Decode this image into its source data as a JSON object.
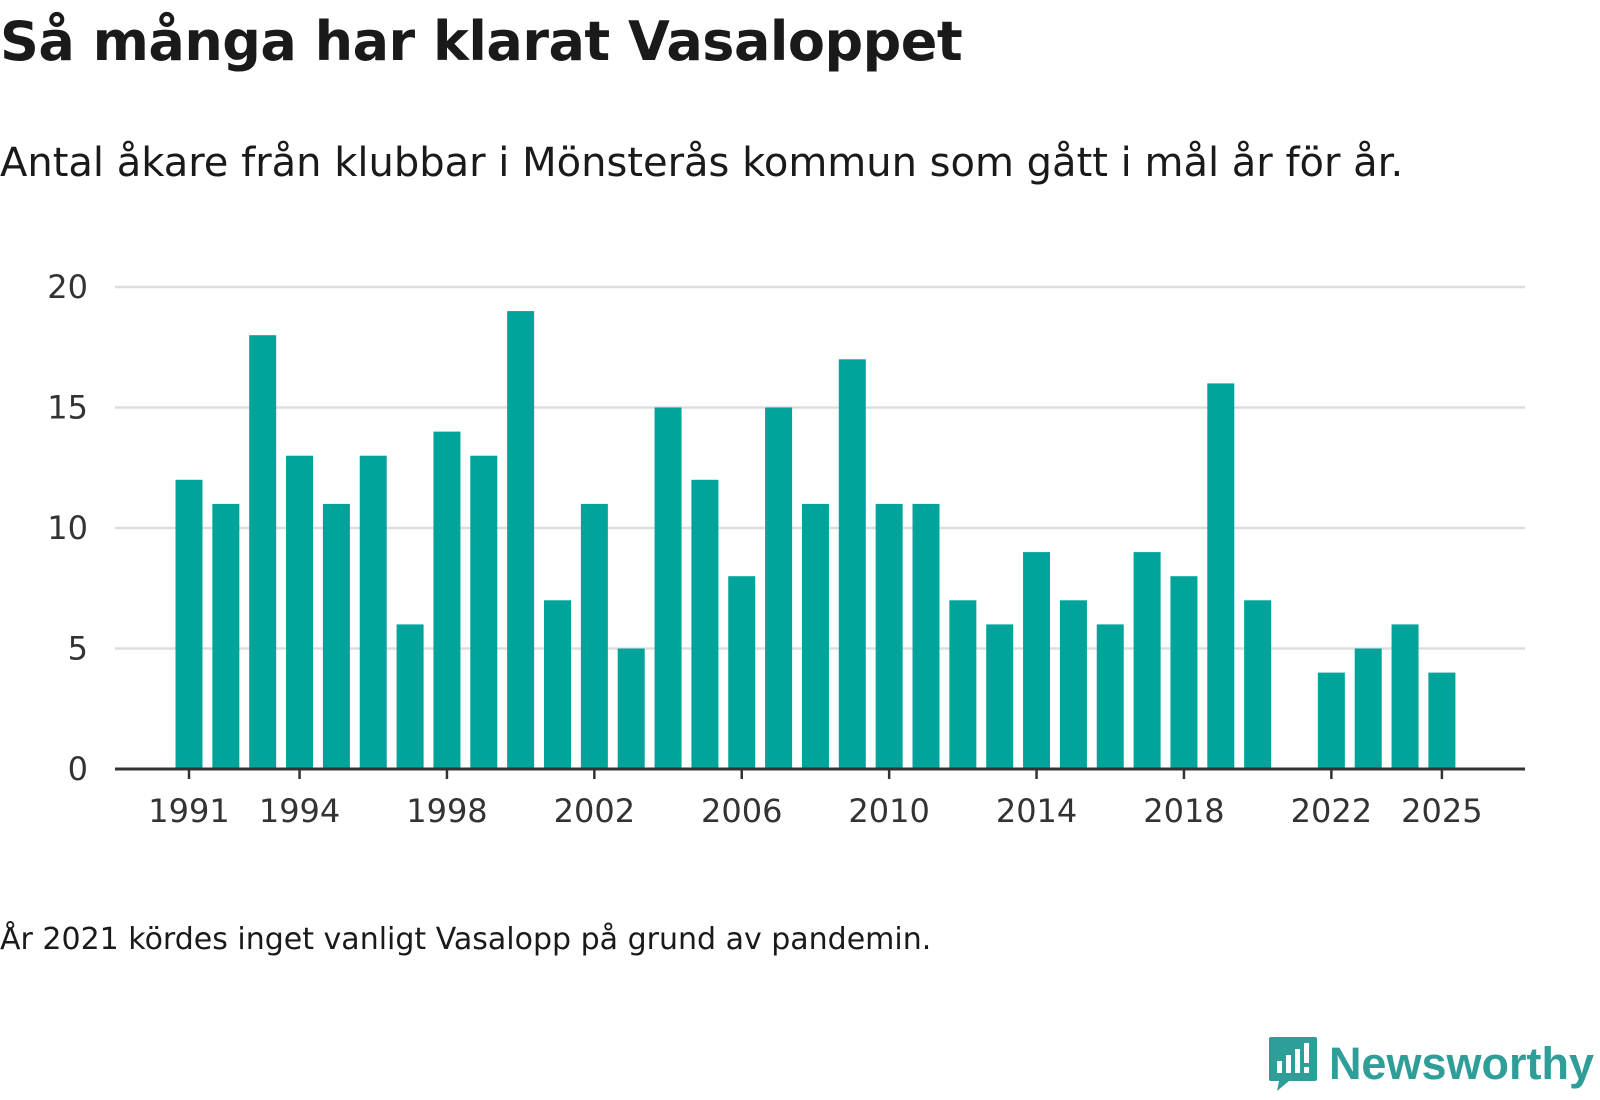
{
  "header": {
    "title": "Så många har klarat Vasaloppet",
    "subtitle": "Antal åkare från klubbar i Mönsterås kommun som gått i mål år för år."
  },
  "footnote": "År 2021 kördes inget vanligt Vasalopp på grund av pandemin.",
  "brand": {
    "name": "Newsworthy",
    "icon": "newsworthy-logo-icon",
    "color": "#2f9d98"
  },
  "chart_data": {
    "type": "bar",
    "title": "Så många har klarat Vasaloppet",
    "xlabel": "",
    "ylabel": "",
    "ylim": [
      0,
      20
    ],
    "yticks": [
      0,
      5,
      10,
      15,
      20
    ],
    "xticks": [
      "1991",
      "1994",
      "1998",
      "2002",
      "2006",
      "2010",
      "2014",
      "2018",
      "2022",
      "2025"
    ],
    "grid": true,
    "bar_color": "#00a49a",
    "categories": [
      "1991",
      "1992",
      "1993",
      "1994",
      "1995",
      "1996",
      "1997",
      "1998",
      "1999",
      "2000",
      "2001",
      "2002",
      "2003",
      "2004",
      "2005",
      "2006",
      "2007",
      "2008",
      "2009",
      "2010",
      "2011",
      "2012",
      "2013",
      "2014",
      "2015",
      "2016",
      "2017",
      "2018",
      "2019",
      "2020",
      "2021",
      "2022",
      "2023",
      "2024",
      "2025"
    ],
    "values": [
      12,
      11,
      18,
      13,
      11,
      13,
      6,
      14,
      13,
      19,
      7,
      11,
      5,
      15,
      12,
      8,
      15,
      11,
      17,
      11,
      11,
      7,
      6,
      9,
      7,
      6,
      9,
      8,
      16,
      7,
      null,
      4,
      5,
      6,
      4
    ]
  }
}
